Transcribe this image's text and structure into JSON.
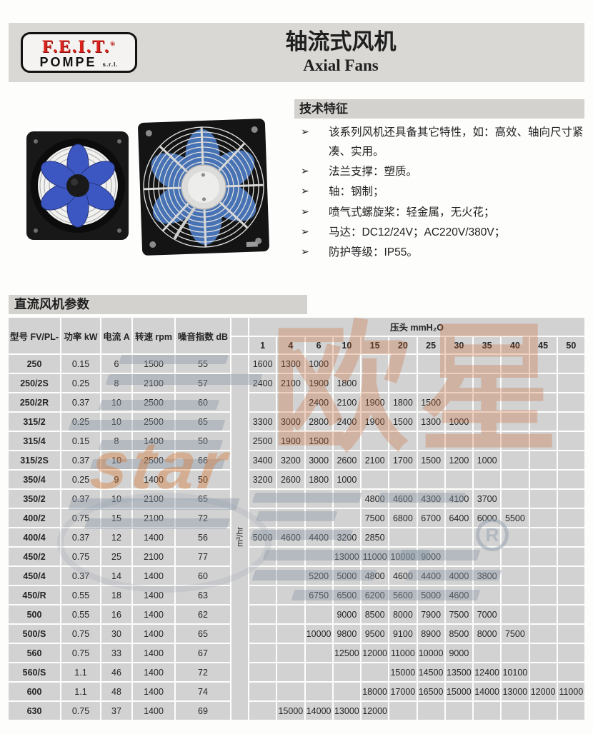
{
  "header": {
    "logo_brand": "F.E.I.T.",
    "logo_reg": "®",
    "logo_sub": "POMPE",
    "logo_suffix": "s.r.l.",
    "title_zh": "轴流式风机",
    "title_en": "Axial Fans"
  },
  "tech": {
    "heading": "技术特征",
    "bullet": "➢",
    "items": [
      "该系列风机还具备其它特性，如：高效、轴向尺寸紧凑、实用。",
      "法兰支撑：塑质。",
      "轴：钢制；",
      "喷气式螺旋桨：轻金属，无火花；",
      "马达：DC12/24V；AC220V/380V；",
      "防护等级：IP55。"
    ]
  },
  "section": {
    "heading": "直流风机参数"
  },
  "table": {
    "col_headers": [
      "型号 FV/PL-",
      "功率 kW",
      "电流 A",
      "转速 rpm",
      "噪音指数 dB"
    ],
    "pressure_header": "压头 mmH₂O",
    "flow_unit": "m³/hr",
    "pressure_cols": [
      "1",
      "4",
      "6",
      "10",
      "15",
      "20",
      "25",
      "30",
      "35",
      "40",
      "45",
      "50"
    ],
    "rows": [
      {
        "model": "250",
        "power": "0.15",
        "current": "6",
        "rpm": "1500",
        "noise": "55",
        "p": [
          "1600",
          "1300",
          "1000",
          "",
          "",
          "",
          "",
          "",
          "",
          "",
          "",
          ""
        ]
      },
      {
        "model": "250/2S",
        "power": "0.25",
        "current": "8",
        "rpm": "2100",
        "noise": "57",
        "p": [
          "2400",
          "2100",
          "1900",
          "1800",
          "",
          "",
          "",
          "",
          "",
          "",
          "",
          ""
        ]
      },
      {
        "model": "250/2R",
        "power": "0.37",
        "current": "10",
        "rpm": "2500",
        "noise": "60",
        "p": [
          "",
          "",
          "2400",
          "2100",
          "1900",
          "1800",
          "1500",
          "",
          "",
          "",
          "",
          ""
        ]
      },
      {
        "model": "315/2",
        "power": "0.25",
        "current": "10",
        "rpm": "2500",
        "noise": "65",
        "p": [
          "3300",
          "3000",
          "2800",
          "2400",
          "1900",
          "1500",
          "1300",
          "1000",
          "",
          "",
          "",
          ""
        ]
      },
      {
        "model": "315/4",
        "power": "0.15",
        "current": "8",
        "rpm": "1400",
        "noise": "50",
        "p": [
          "2500",
          "1900",
          "1500",
          "",
          "",
          "",
          "",
          "",
          "",
          "",
          "",
          ""
        ]
      },
      {
        "model": "315/2S",
        "power": "0.37",
        "current": "10",
        "rpm": "2500",
        "noise": "66",
        "p": [
          "3400",
          "3200",
          "3000",
          "2600",
          "2100",
          "1700",
          "1500",
          "1200",
          "1000",
          "",
          "",
          ""
        ]
      },
      {
        "model": "350/4",
        "power": "0.25",
        "current": "9",
        "rpm": "1400",
        "noise": "50",
        "p": [
          "3200",
          "2600",
          "1800",
          "1000",
          "",
          "",
          "",
          "",
          "",
          "",
          "",
          ""
        ]
      },
      {
        "model": "350/2",
        "power": "0.37",
        "current": "10",
        "rpm": "2100",
        "noise": "65",
        "p": [
          "",
          "",
          "",
          "",
          "4800",
          "4600",
          "4300",
          "4100",
          "3700",
          "",
          "",
          ""
        ]
      },
      {
        "model": "400/2",
        "power": "0.75",
        "current": "15",
        "rpm": "2100",
        "noise": "72",
        "p": [
          "",
          "",
          "",
          "",
          "7500",
          "6800",
          "6700",
          "6400",
          "6000",
          "5500",
          "",
          ""
        ]
      },
      {
        "model": "400/4",
        "power": "0.37",
        "current": "12",
        "rpm": "1400",
        "noise": "56",
        "p": [
          "5000",
          "4600",
          "4400",
          "3200",
          "2850",
          "",
          "",
          "",
          "",
          "",
          "",
          ""
        ]
      },
      {
        "model": "450/2",
        "power": "0.75",
        "current": "25",
        "rpm": "2100",
        "noise": "77",
        "p": [
          "",
          "",
          "",
          "13000",
          "11000",
          "10000",
          "9000",
          "",
          "",
          "",
          "",
          ""
        ]
      },
      {
        "model": "450/4",
        "power": "0.37",
        "current": "14",
        "rpm": "1400",
        "noise": "60",
        "p": [
          "",
          "",
          "5200",
          "5000",
          "4800",
          "4600",
          "4400",
          "4000",
          "3800",
          "",
          "",
          ""
        ]
      },
      {
        "model": "450/R",
        "power": "0.55",
        "current": "18",
        "rpm": "1400",
        "noise": "63",
        "p": [
          "",
          "",
          "6750",
          "6500",
          "6200",
          "5600",
          "5000",
          "4600",
          "",
          "",
          "",
          ""
        ]
      },
      {
        "model": "500",
        "power": "0.55",
        "current": "16",
        "rpm": "1400",
        "noise": "62",
        "p": [
          "",
          "",
          "",
          "9000",
          "8500",
          "8000",
          "7900",
          "7500",
          "7000",
          "",
          "",
          ""
        ]
      },
      {
        "model": "500/S",
        "power": "0.75",
        "current": "30",
        "rpm": "1400",
        "noise": "65",
        "p": [
          "",
          "",
          "10000",
          "9800",
          "9500",
          "9100",
          "8900",
          "8500",
          "8000",
          "7500",
          "",
          ""
        ]
      },
      {
        "model": "560",
        "power": "0.75",
        "current": "33",
        "rpm": "1400",
        "noise": "67",
        "p": [
          "",
          "",
          "",
          "12500",
          "12000",
          "11000",
          "10000",
          "9000",
          "",
          "",
          "",
          ""
        ]
      },
      {
        "model": "560/S",
        "power": "1.1",
        "current": "46",
        "rpm": "1400",
        "noise": "72",
        "p": [
          "",
          "",
          "",
          "",
          "",
          "15000",
          "14500",
          "13500",
          "12400",
          "10100",
          "",
          ""
        ]
      },
      {
        "model": "600",
        "power": "1.1",
        "current": "48",
        "rpm": "1400",
        "noise": "74",
        "p": [
          "",
          "",
          "",
          "",
          "18000",
          "17000",
          "16500",
          "15000",
          "14000",
          "13000",
          "12000",
          "11000"
        ]
      },
      {
        "model": "630",
        "power": "0.75",
        "current": "37",
        "rpm": "1400",
        "noise": "69",
        "p": [
          "",
          "15000",
          "14000",
          "13000",
          "12000",
          "",
          "",
          "",
          "",
          "",
          "",
          ""
        ]
      }
    ]
  },
  "watermark": {
    "text_cn": "欧星",
    "text_star": "star",
    "reg": "R"
  },
  "colors": {
    "band_bg": "#d9d8d4",
    "cell_bg": "#d2d2d2",
    "logo_red": "#d9231c",
    "blade_blue": "#3d57c2",
    "watermark_orange": "#c96a36",
    "watermark_gray": "#8b98a6"
  }
}
